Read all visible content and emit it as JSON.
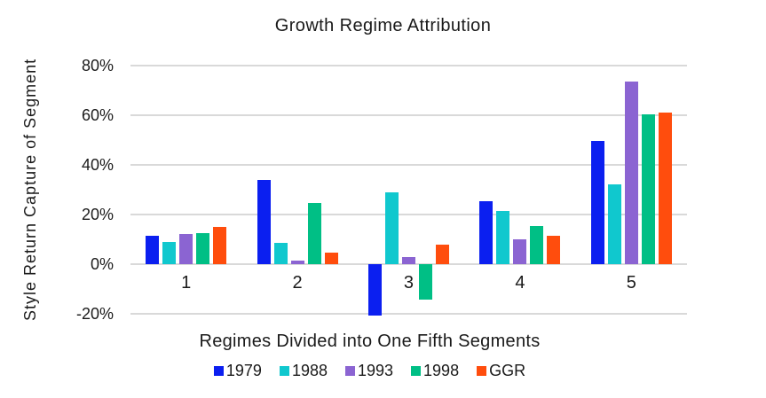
{
  "chart_data": {
    "type": "bar",
    "title": "Growth Regime Attribution",
    "xlabel": "Regimes Divided into One Fifth Segments",
    "ylabel": "Style Return Capture of Segment",
    "categories": [
      "1",
      "2",
      "3",
      "4",
      "5"
    ],
    "series": [
      {
        "name": "1979",
        "color": "#0b1ff0",
        "values": [
          11.5,
          34,
          -20.5,
          25.5,
          49.5
        ]
      },
      {
        "name": "1988",
        "color": "#10c8ce",
        "values": [
          9,
          8.5,
          29,
          21.5,
          32
        ]
      },
      {
        "name": "1993",
        "color": "#8b64d2",
        "values": [
          12,
          1.5,
          3,
          10,
          73.5
        ]
      },
      {
        "name": "1998",
        "color": "#00bf85",
        "values": [
          12.5,
          24.5,
          -14,
          15.5,
          60.5
        ]
      },
      {
        "name": "GGR",
        "color": "#ff4d0d",
        "values": [
          15,
          4.5,
          8,
          11.5,
          61
        ]
      }
    ],
    "ylim": [
      -20,
      80
    ],
    "yticks": [
      {
        "value": 80,
        "label": "80%"
      },
      {
        "value": 60,
        "label": "60%"
      },
      {
        "value": 40,
        "label": "40%"
      },
      {
        "value": 20,
        "label": "20%"
      },
      {
        "value": 0,
        "label": "0%"
      },
      {
        "value": -20,
        "label": "-20%"
      }
    ],
    "grid": true,
    "legend_position": "bottom",
    "gridline_color": "#d9d9d9",
    "background_color": "#ffffff",
    "text_color": "#1a1a1a"
  }
}
